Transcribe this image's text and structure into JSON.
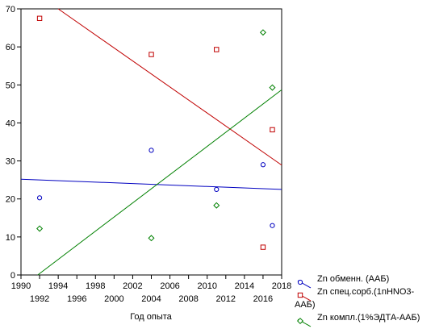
{
  "chart_data": {
    "type": "scatter",
    "title": "",
    "xlabel": "Год опыта",
    "ylabel": "",
    "xlim": [
      1990,
      2018
    ],
    "ylim": [
      0,
      70
    ],
    "x_ticks_top": [
      "1990",
      "1994",
      "1998",
      "2002",
      "2006",
      "2010",
      "2014",
      "2018"
    ],
    "x_ticks_bottom": [
      "1992",
      "1996",
      "2000",
      "2004",
      "2008",
      "2012",
      "2016"
    ],
    "x_tick_values_top": [
      1990,
      1994,
      1998,
      2002,
      2006,
      2010,
      2014,
      2018
    ],
    "x_tick_values_bottom": [
      1992,
      1996,
      2000,
      2004,
      2008,
      2012,
      2016
    ],
    "y_ticks": [
      "0",
      "10",
      "20",
      "30",
      "40",
      "50",
      "60",
      "70"
    ],
    "y_tick_values": [
      0,
      10,
      20,
      30,
      40,
      50,
      60,
      70
    ],
    "grid": false,
    "legend_position": "bottom-right",
    "series": [
      {
        "name": "Zn обменн. (ААБ)",
        "color": "#0000c0",
        "marker": "circle",
        "points": [
          [
            1992,
            20.3
          ],
          [
            2004,
            32.8
          ],
          [
            2011,
            22.5
          ],
          [
            2016,
            29.0
          ],
          [
            2017,
            13.0
          ]
        ],
        "fit": [
          [
            1990,
            25.2
          ],
          [
            2018,
            22.5
          ]
        ]
      },
      {
        "name": "Zn спец.сорб.(1nHNO3-ААБ)",
        "color": "#c00000",
        "marker": "square",
        "points": [
          [
            1992,
            67.5
          ],
          [
            2004,
            58.0
          ],
          [
            2011,
            59.3
          ],
          [
            2016,
            7.3
          ],
          [
            2017,
            38.2
          ]
        ],
        "fit": [
          [
            1994,
            70.0
          ],
          [
            2018,
            28.9
          ]
        ]
      },
      {
        "name": "Zn компл.(1%ЭДТА-ААБ)",
        "color": "#008000",
        "marker": "diamond",
        "points": [
          [
            1992,
            12.2
          ],
          [
            2004,
            9.7
          ],
          [
            2011,
            18.3
          ],
          [
            2016,
            63.8
          ],
          [
            2017,
            49.3
          ]
        ],
        "fit": [
          [
            1991.8,
            0.0
          ],
          [
            2018,
            48.7
          ]
        ]
      }
    ],
    "legend": [
      {
        "line1": "Zn обменн. (ААБ)",
        "line2": ""
      },
      {
        "line1": "Zn спец.сорб.(1nHNO3-",
        "line2": "ААБ)"
      },
      {
        "line1": "Zn компл.(1%ЭДТА-ААБ)",
        "line2": ""
      }
    ]
  }
}
